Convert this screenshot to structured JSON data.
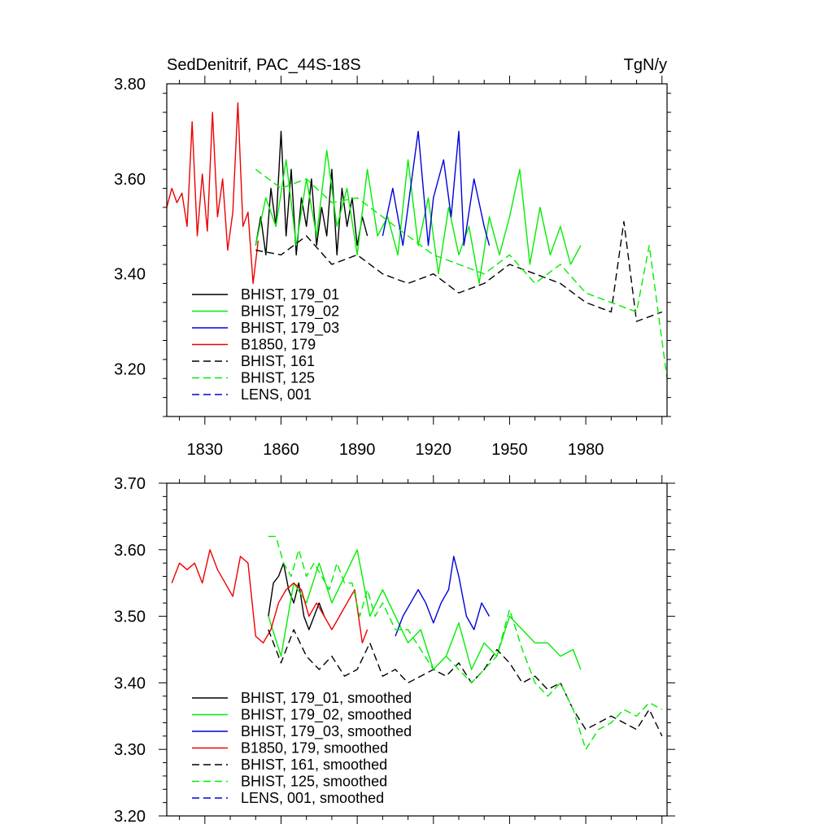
{
  "figure": {
    "title_left": "SedDenitrif, PAC_44S-18S",
    "title_right": "TgN/y"
  },
  "chart_data": [
    {
      "type": "line",
      "panel": "top",
      "title": "SedDenitrif, PAC_44S-18S",
      "units": "TgN/y",
      "xlim": [
        1815,
        2012
      ],
      "ylim": [
        3.1,
        3.8
      ],
      "x_ticks": [
        1830,
        1860,
        1890,
        1920,
        1950,
        1980
      ],
      "y_ticks": [
        3.2,
        3.4,
        3.6,
        3.8
      ],
      "y_tick_labels": [
        "3.20",
        "3.40",
        "3.60",
        "3.80"
      ],
      "legend_position": "bottom-left",
      "grid": false,
      "legend_entries": [
        "BHIST, 179_01",
        "BHIST, 179_02",
        "BHIST, 179_03",
        "B1850, 179",
        "BHIST, 161",
        "BHIST, 125",
        "LENS, 001"
      ],
      "series": [
        {
          "name": "BHIST, 179_01",
          "color": "#000000",
          "dash": "solid",
          "x": [
            1850,
            1852,
            1854,
            1856,
            1858,
            1860,
            1862,
            1864,
            1866,
            1868,
            1870,
            1872,
            1874,
            1876,
            1878,
            1880,
            1882,
            1884,
            1886,
            1888,
            1890,
            1892,
            1894
          ],
          "y": [
            3.46,
            3.52,
            3.44,
            3.58,
            3.5,
            3.7,
            3.48,
            3.62,
            3.44,
            3.56,
            3.5,
            3.6,
            3.46,
            3.54,
            3.48,
            3.62,
            3.44,
            3.58,
            3.5,
            3.56,
            3.46,
            3.52,
            3.48
          ]
        },
        {
          "name": "BHIST, 179_02",
          "color": "#00ee00",
          "dash": "solid",
          "x": [
            1850,
            1854,
            1858,
            1862,
            1866,
            1870,
            1874,
            1878,
            1882,
            1886,
            1890,
            1894,
            1898,
            1902,
            1906,
            1910,
            1914,
            1918,
            1922,
            1926,
            1930,
            1934,
            1938,
            1942,
            1946,
            1950,
            1954,
            1958,
            1962,
            1966,
            1970,
            1974,
            1978
          ],
          "y": [
            3.46,
            3.56,
            3.5,
            3.64,
            3.46,
            3.6,
            3.48,
            3.66,
            3.5,
            3.58,
            3.44,
            3.62,
            3.48,
            3.52,
            3.44,
            3.64,
            3.46,
            3.56,
            3.4,
            3.54,
            3.44,
            3.5,
            3.38,
            3.52,
            3.44,
            3.52,
            3.62,
            3.42,
            3.54,
            3.44,
            3.5,
            3.42,
            3.46
          ]
        },
        {
          "name": "BHIST, 179_03",
          "color": "#0000dd",
          "dash": "solid",
          "x": [
            1900,
            1904,
            1908,
            1912,
            1914,
            1918,
            1920,
            1924,
            1927,
            1930,
            1932,
            1936,
            1940,
            1942
          ],
          "y": [
            3.48,
            3.58,
            3.46,
            3.62,
            3.7,
            3.46,
            3.56,
            3.64,
            3.52,
            3.7,
            3.46,
            3.6,
            3.5,
            3.46
          ]
        },
        {
          "name": "B1850, 179",
          "color": "#ee0000",
          "dash": "solid",
          "x": [
            1815,
            1817,
            1819,
            1821,
            1823,
            1825,
            1827,
            1829,
            1831,
            1833,
            1835,
            1837,
            1839,
            1841,
            1843,
            1845,
            1847,
            1849,
            1851
          ],
          "y": [
            3.54,
            3.58,
            3.55,
            3.57,
            3.5,
            3.72,
            3.48,
            3.61,
            3.49,
            3.74,
            3.52,
            3.6,
            3.45,
            3.53,
            3.76,
            3.5,
            3.53,
            3.38,
            3.47
          ]
        },
        {
          "name": "BHIST, 161",
          "color": "#000000",
          "dash": "dash",
          "x": [
            1850,
            1860,
            1870,
            1880,
            1890,
            1900,
            1910,
            1920,
            1930,
            1940,
            1950,
            1960,
            1970,
            1980,
            1990,
            1995,
            2000,
            2010
          ],
          "y": [
            3.45,
            3.44,
            3.48,
            3.42,
            3.44,
            3.4,
            3.38,
            3.4,
            3.36,
            3.38,
            3.42,
            3.4,
            3.38,
            3.34,
            3.32,
            3.51,
            3.3,
            3.32
          ]
        },
        {
          "name": "BHIST, 125",
          "color": "#00ee00",
          "dash": "dash",
          "x": [
            1850,
            1860,
            1870,
            1880,
            1890,
            1900,
            1910,
            1920,
            1930,
            1940,
            1950,
            1960,
            1970,
            1980,
            1990,
            2000,
            2005,
            2012
          ],
          "y": [
            3.62,
            3.58,
            3.6,
            3.55,
            3.56,
            3.52,
            3.48,
            3.44,
            3.42,
            3.4,
            3.44,
            3.38,
            3.42,
            3.36,
            3.34,
            3.32,
            3.46,
            3.18
          ]
        },
        {
          "name": "LENS, 001",
          "color": "#0000dd",
          "dash": "dash",
          "x": [],
          "y": []
        }
      ]
    },
    {
      "type": "line",
      "panel": "bottom",
      "xlim": [
        1815,
        2012
      ],
      "ylim": [
        3.2,
        3.7
      ],
      "y_ticks": [
        3.2,
        3.3,
        3.4,
        3.5,
        3.6,
        3.7
      ],
      "y_tick_labels": [
        "3.20",
        "3.30",
        "3.40",
        "3.50",
        "3.60",
        "3.70"
      ],
      "legend_position": "bottom-left",
      "grid": false,
      "legend_entries": [
        "BHIST, 179_01, smoothed",
        "BHIST, 179_02, smoothed",
        "BHIST, 179_03, smoothed",
        "B1850, 179, smoothed",
        "BHIST, 161, smoothed",
        "BHIST, 125, smoothed",
        "LENS, 001, smoothed"
      ],
      "series": [
        {
          "name": "BHIST, 179_01, smoothed",
          "color": "#000000",
          "dash": "solid",
          "x": [
            1855,
            1857,
            1859,
            1861,
            1863,
            1865,
            1867,
            1869,
            1871,
            1873,
            1875,
            1877
          ],
          "y": [
            3.5,
            3.55,
            3.56,
            3.58,
            3.54,
            3.52,
            3.55,
            3.5,
            3.48,
            3.5,
            3.52,
            3.5
          ]
        },
        {
          "name": "BHIST, 179_02, smoothed",
          "color": "#00ee00",
          "dash": "solid",
          "x": [
            1855,
            1860,
            1865,
            1870,
            1875,
            1880,
            1885,
            1890,
            1895,
            1900,
            1905,
            1910,
            1915,
            1920,
            1925,
            1930,
            1935,
            1940,
            1945,
            1950,
            1955,
            1960,
            1965,
            1970,
            1975,
            1978
          ],
          "y": [
            3.5,
            3.44,
            3.55,
            3.52,
            3.58,
            3.52,
            3.56,
            3.6,
            3.5,
            3.54,
            3.5,
            3.46,
            3.48,
            3.42,
            3.44,
            3.49,
            3.42,
            3.46,
            3.44,
            3.5,
            3.48,
            3.46,
            3.46,
            3.44,
            3.45,
            3.42
          ]
        },
        {
          "name": "BHIST, 179_03, smoothed",
          "color": "#0000dd",
          "dash": "solid",
          "x": [
            1905,
            1908,
            1911,
            1914,
            1917,
            1920,
            1923,
            1926,
            1928,
            1930,
            1933,
            1936,
            1939,
            1942
          ],
          "y": [
            3.47,
            3.5,
            3.52,
            3.54,
            3.52,
            3.49,
            3.52,
            3.54,
            3.59,
            3.56,
            3.5,
            3.48,
            3.52,
            3.5
          ]
        },
        {
          "name": "B1850, 179, smoothed",
          "color": "#ee0000",
          "dash": "solid",
          "x": [
            1817,
            1820,
            1823,
            1826,
            1829,
            1832,
            1835,
            1838,
            1841,
            1844,
            1847,
            1850,
            1853,
            1856,
            1859,
            1862,
            1865,
            1868,
            1871,
            1874,
            1877,
            1880,
            1883,
            1886,
            1889,
            1892,
            1894
          ],
          "y": [
            3.55,
            3.58,
            3.57,
            3.58,
            3.55,
            3.6,
            3.57,
            3.55,
            3.53,
            3.59,
            3.58,
            3.47,
            3.46,
            3.48,
            3.52,
            3.54,
            3.55,
            3.54,
            3.5,
            3.52,
            3.5,
            3.48,
            3.5,
            3.52,
            3.54,
            3.46,
            3.48
          ]
        },
        {
          "name": "BHIST, 161, smoothed",
          "color": "#000000",
          "dash": "dash",
          "x": [
            1855,
            1860,
            1865,
            1870,
            1875,
            1880,
            1885,
            1890,
            1895,
            1900,
            1905,
            1910,
            1915,
            1920,
            1925,
            1930,
            1935,
            1940,
            1945,
            1950,
            1955,
            1960,
            1965,
            1970,
            1975,
            1980,
            1985,
            1990,
            1995,
            2000,
            2005,
            2010
          ],
          "y": [
            3.48,
            3.43,
            3.48,
            3.44,
            3.42,
            3.44,
            3.41,
            3.42,
            3.46,
            3.41,
            3.42,
            3.4,
            3.41,
            3.42,
            3.41,
            3.43,
            3.4,
            3.42,
            3.45,
            3.43,
            3.4,
            3.41,
            3.39,
            3.4,
            3.36,
            3.33,
            3.34,
            3.35,
            3.34,
            3.33,
            3.36,
            3.32
          ]
        },
        {
          "name": "BHIST, 125, smoothed",
          "color": "#00ee00",
          "dash": "dash",
          "x": [
            1855,
            1858,
            1861,
            1864,
            1867,
            1870,
            1873,
            1876,
            1879,
            1882,
            1885,
            1888,
            1891,
            1894,
            1897,
            1900,
            1905,
            1910,
            1915,
            1920,
            1925,
            1930,
            1935,
            1940,
            1945,
            1950,
            1955,
            1960,
            1965,
            1970,
            1975,
            1980,
            1985,
            1990,
            1995,
            2000,
            2005,
            2010
          ],
          "y": [
            3.62,
            3.62,
            3.58,
            3.56,
            3.6,
            3.56,
            3.58,
            3.56,
            3.54,
            3.58,
            3.55,
            3.55,
            3.5,
            3.54,
            3.5,
            3.52,
            3.48,
            3.48,
            3.45,
            3.42,
            3.44,
            3.42,
            3.4,
            3.42,
            3.44,
            3.51,
            3.45,
            3.4,
            3.38,
            3.4,
            3.36,
            3.3,
            3.33,
            3.34,
            3.36,
            3.35,
            3.37,
            3.36
          ]
        },
        {
          "name": "LENS, 001, smoothed",
          "color": "#0000dd",
          "dash": "dash",
          "x": [],
          "y": []
        }
      ]
    }
  ]
}
